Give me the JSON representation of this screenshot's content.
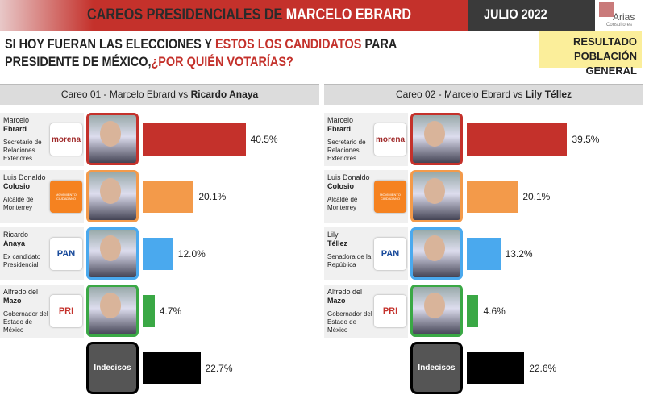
{
  "header": {
    "title": "CAREOS PRESIDENCIALES DE",
    "title_name": "MARCELO EBRARD",
    "date": "JULIO 2022",
    "logo": "Arias",
    "logo_sub": "Consultores"
  },
  "question": {
    "part1": "SI HOY FUERAN LAS ELECCIONES Y",
    "part2": "ESTOS LOS CANDIDATOS",
    "part3": "PARA",
    "part4": "PRESIDENTE DE MÉXICO,",
    "part5": "¿POR QUIÉN VOTARÍAS?"
  },
  "badge": {
    "line1": "RESULTADO",
    "line2": "POBLACIÓN GENERAL"
  },
  "chart_data": [
    {
      "type": "bar",
      "title": "Careo 01 - Marcelo Ebrard vs",
      "title_bold": "Ricardo Anaya",
      "candidates": [
        {
          "first": "Marcelo",
          "last": "Ebrard",
          "role": [
            "Secretario de",
            "Relaciones",
            "Exteriores"
          ],
          "party": "morena"
        },
        {
          "first": "Luis Donaldo",
          "last": "Colosio",
          "role": [
            "Alcalde de",
            "Monterrey"
          ],
          "party": "MOVIMIENTO CIUDADANO"
        },
        {
          "first": "Ricardo",
          "last": "Anaya",
          "role": [
            "Ex candidato",
            "Presidencial"
          ],
          "party": "PAN"
        },
        {
          "first": "Alfredo del",
          "last": "Mazo",
          "role": [
            "Gobernador del",
            "Estado de",
            "México"
          ],
          "party": "PRI"
        }
      ],
      "undecided": "Indecisos",
      "values": [
        40.5,
        20.1,
        12.0,
        4.7,
        22.7
      ],
      "value_labels": [
        "40.5%",
        "20.1%",
        "12.0%",
        "4.7%",
        "22.7%"
      ],
      "colors": [
        "#c4312b",
        "#f39a4a",
        "#4aa9ee",
        "#3aa845",
        "#000000"
      ]
    },
    {
      "type": "bar",
      "title": "Careo 02 - Marcelo Ebrard vs",
      "title_bold": "Lily Téllez",
      "candidates": [
        {
          "first": "Marcelo",
          "last": "Ebrard",
          "role": [
            "Secretario de",
            "Relaciones",
            "Exteriores"
          ],
          "party": "morena"
        },
        {
          "first": "Luis Donaldo",
          "last": "Colosio",
          "role": [
            "Alcalde de",
            "Monterrey"
          ],
          "party": "MOVIMIENTO CIUDADANO"
        },
        {
          "first": "Lily",
          "last": "Téllez",
          "role": [
            "Senadora de la",
            "República"
          ],
          "party": "PAN"
        },
        {
          "first": "Alfredo del",
          "last": "Mazo",
          "role": [
            "Gobernador del",
            "Estado de",
            "México"
          ],
          "party": "PRI"
        }
      ],
      "undecided": "Indecisos",
      "values": [
        39.5,
        20.1,
        13.2,
        4.6,
        22.6
      ],
      "value_labels": [
        "39.5%",
        "20.1%",
        "13.2%",
        "4.6%",
        "22.6%"
      ],
      "colors": [
        "#c4312b",
        "#f39a4a",
        "#4aa9ee",
        "#3aa845",
        "#000000"
      ]
    }
  ]
}
